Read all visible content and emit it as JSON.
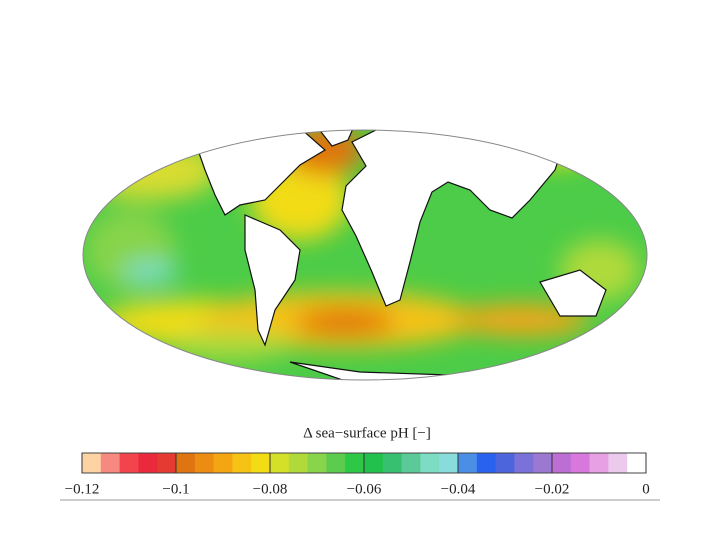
{
  "colorbar": {
    "label": "Δ sea−surface pH [−]",
    "lim": [
      -0.12,
      0
    ],
    "ticks": [
      {
        "value": -0.12,
        "label": "−0.12"
      },
      {
        "value": -0.1,
        "label": "−0.1"
      },
      {
        "value": -0.08,
        "label": "−0.08"
      },
      {
        "value": -0.06,
        "label": "−0.06"
      },
      {
        "value": -0.04,
        "label": "−0.04"
      },
      {
        "value": -0.02,
        "label": "−0.02"
      },
      0
    ],
    "colors": [
      "#fdd3a4",
      "#f78a80",
      "#f2444c",
      "#ea2a3c",
      "#e43a32",
      "#e07410",
      "#ec8c12",
      "#f4a612",
      "#f6c214",
      "#f2dc14",
      "#d4e028",
      "#b0da3a",
      "#88d44a",
      "#5ccc4e",
      "#2cc846",
      "#22c04c",
      "#36c070",
      "#5cca98",
      "#7cdcc4",
      "#88dcdc",
      "#4a8ee6",
      "#2a62f0",
      "#4c64dc",
      "#7a72d8",
      "#9c78d2",
      "#bc6ed4",
      "#d878dc",
      "#e8a0e4",
      "#eccaee",
      "#ffffff"
    ]
  }
}
